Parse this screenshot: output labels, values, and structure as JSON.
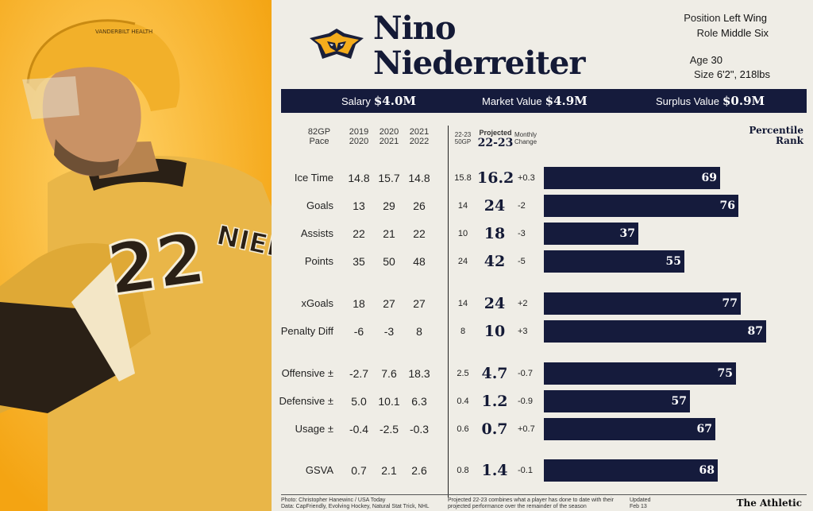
{
  "player": {
    "first_name": "Nino",
    "last_name": "Niederreiter",
    "jersey_number": "22",
    "jersey_name": "NIED",
    "helmet_text": "VANDERBILT HEALTH"
  },
  "info": {
    "position_label": "Position",
    "position_value": "Left Wing",
    "role_label": "Role",
    "role_value": "Middle Six",
    "age_label": "Age",
    "age_value": "30",
    "size_label": "Size",
    "size_value": "6'2\", 218lbs"
  },
  "contract": {
    "salary_label": "Salary",
    "salary_value": "$4.0M",
    "market_label": "Market Value",
    "market_value": "$4.9M",
    "surplus_label": "Surplus Value",
    "surplus_value": "$0.9M"
  },
  "headers": {
    "pace_1": "82GP",
    "pace_2": "Pace",
    "season1_a": "2019",
    "season1_b": "2020",
    "season2_a": "2020",
    "season2_b": "2021",
    "season3_a": "2021",
    "season3_b": "2022",
    "gp50_a": "22-23",
    "gp50_b": "50GP",
    "proj_a": "Projected",
    "proj_b": "22-23",
    "chg_a": "Monthly",
    "chg_b": "Change",
    "pct_a": "Percentile",
    "pct_b": "Rank"
  },
  "colors": {
    "navy": "#151b3c",
    "gold": "#f4ac1c",
    "background": "#efede6"
  },
  "chart_data": {
    "type": "table",
    "rows": [
      {
        "label": "Ice Time",
        "s2020": "14.8",
        "s2021": "15.7",
        "s2022": "14.8",
        "gp50": "15.8",
        "proj": "16.2",
        "change": "+0.3",
        "pct": 69
      },
      {
        "label": "Goals",
        "s2020": "13",
        "s2021": "29",
        "s2022": "26",
        "gp50": "14",
        "proj": "24",
        "change": "-2",
        "pct": 76
      },
      {
        "label": "Assists",
        "s2020": "22",
        "s2021": "21",
        "s2022": "22",
        "gp50": "10",
        "proj": "18",
        "change": "-3",
        "pct": 37
      },
      {
        "label": "Points",
        "s2020": "35",
        "s2021": "50",
        "s2022": "48",
        "gp50": "24",
        "proj": "42",
        "change": "-5",
        "pct": 55
      },
      {
        "label": "xGoals",
        "s2020": "18",
        "s2021": "27",
        "s2022": "27",
        "gp50": "14",
        "proj": "24",
        "change": "+2",
        "pct": 77
      },
      {
        "label": "Penalty Diff",
        "s2020": "-6",
        "s2021": "-3",
        "s2022": "8",
        "gp50": "8",
        "proj": "10",
        "change": "+3",
        "pct": 87
      },
      {
        "label": "Offensive ±",
        "s2020": "-2.7",
        "s2021": "7.6",
        "s2022": "18.3",
        "gp50": "2.5",
        "proj": "4.7",
        "change": "-0.7",
        "pct": 75
      },
      {
        "label": "Defensive ±",
        "s2020": "5.0",
        "s2021": "10.1",
        "s2022": "6.3",
        "gp50": "0.4",
        "proj": "1.2",
        "change": "-0.9",
        "pct": 57
      },
      {
        "label": "Usage ±",
        "s2020": "-0.4",
        "s2021": "-2.5",
        "s2022": "-0.3",
        "gp50": "0.6",
        "proj": "0.7",
        "change": "+0.7",
        "pct": 67
      },
      {
        "label": "GSVA",
        "s2020": "0.7",
        "s2021": "2.1",
        "s2022": "2.6",
        "gp50": "0.8",
        "proj": "1.4",
        "change": "-0.1",
        "pct": 68
      }
    ]
  },
  "footer": {
    "credit_1": "Photo: Christopher Hanewinc / USA Today",
    "credit_2": "Data: CapFriendly, Evolving Hockey, Natural Stat Trick, NHL",
    "note_1": "Projected 22-23 combines what a player has done to date with their",
    "note_2": "projected performance over the remainder of the season",
    "updated_1": "Updated",
    "updated_2": "Feb 13",
    "brand": "The Athletic"
  }
}
